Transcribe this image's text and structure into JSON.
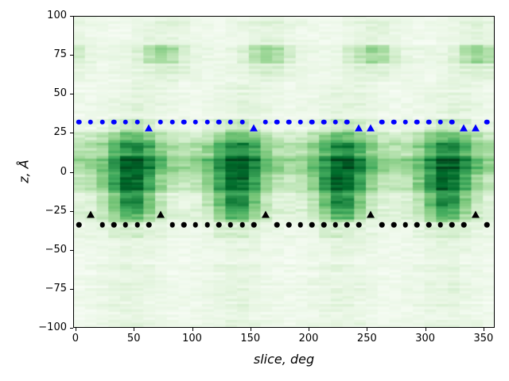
{
  "chart_data": {
    "type": "heatmap",
    "title": "",
    "xlabel": "slice, deg",
    "ylabel": "z, Å",
    "xlim": [
      -2.0,
      359.6
    ],
    "ylim": [
      -100,
      100
    ],
    "grid": false,
    "legend": "none",
    "xticks": [
      0,
      50,
      100,
      150,
      200,
      250,
      300,
      350
    ],
    "xticklabels": [
      "0",
      "50",
      "100",
      "150",
      "200",
      "250",
      "300",
      "350"
    ],
    "yticks": [
      100,
      75,
      50,
      25,
      0,
      -25,
      -50,
      -75,
      -100
    ],
    "yticklabels": [
      "100",
      "75",
      "50",
      "25",
      "0",
      "−25",
      "−50",
      "−75",
      "−100"
    ],
    "colormap": {
      "name": "Greens",
      "stops": [
        [
          0.0,
          "#f7fcf5"
        ],
        [
          0.125,
          "#e5f5e0"
        ],
        [
          0.25,
          "#c7e9c0"
        ],
        [
          0.375,
          "#a1d99b"
        ],
        [
          0.5,
          "#74c476"
        ],
        [
          0.625,
          "#41ab5d"
        ],
        [
          0.75,
          "#238b45"
        ],
        [
          0.875,
          "#006d2c"
        ],
        [
          1.0,
          "#00441b"
        ]
      ]
    },
    "heatmap": {
      "description": "Green density map, 36 angular slices (~10 deg wide) x thin z rows; four-fold periodic dark blobs (period ~90 deg, centers near slice 50/140/230/320) in the central band z ~ -30..+22, strongest near z 0..10; weaker periodic blobs near z ~ 70..82 centered near slice 75/165/255/345; very light elsewhere with horizontal striping.",
      "nx": 36,
      "nz": 118,
      "period_deg": 90,
      "seed": 7,
      "bands": [
        {
          "zlo": 82,
          "zhi": 100,
          "imin": 0.04,
          "imax": 0.13,
          "c0": 75,
          "w": 26,
          "rowj": 0.45,
          "cellj": 0.04
        },
        {
          "zlo": 70,
          "zhi": 82,
          "imin": 0.08,
          "imax": 0.4,
          "c0": 75,
          "w": 19,
          "rowj": 0.3,
          "cellj": 0.05
        },
        {
          "zlo": 58,
          "zhi": 70,
          "imin": 0.06,
          "imax": 0.17,
          "c0": 75,
          "w": 24,
          "rowj": 0.4,
          "cellj": 0.04
        },
        {
          "zlo": 34,
          "zhi": 58,
          "imin": 0.04,
          "imax": 0.12,
          "c0": 55,
          "w": 28,
          "rowj": 0.5,
          "cellj": 0.04
        },
        {
          "zlo": 26,
          "zhi": 34,
          "imin": 0.08,
          "imax": 0.3,
          "c0": 50,
          "w": 22,
          "rowj": 0.3,
          "cellj": 0.05
        },
        {
          "zlo": 18,
          "zhi": 26,
          "imin": 0.2,
          "imax": 0.55,
          "c0": 50,
          "w": 24,
          "rowj": 0.25,
          "cellj": 0.06
        },
        {
          "zlo": 10,
          "zhi": 18,
          "imin": 0.28,
          "imax": 0.78,
          "c0": 50,
          "w": 23,
          "rowj": 0.28,
          "cellj": 0.07
        },
        {
          "zlo": -2,
          "zhi": 10,
          "imin": 0.36,
          "imax": 0.97,
          "c0": 50,
          "w": 23,
          "rowj": 0.2,
          "cellj": 0.06
        },
        {
          "zlo": -14,
          "zhi": -2,
          "imin": 0.22,
          "imax": 0.86,
          "c0": 48,
          "w": 22,
          "rowj": 0.25,
          "cellj": 0.06
        },
        {
          "zlo": -24,
          "zhi": -14,
          "imin": 0.1,
          "imax": 0.7,
          "c0": 48,
          "w": 21,
          "rowj": 0.28,
          "cellj": 0.06
        },
        {
          "zlo": -32,
          "zhi": -24,
          "imin": 0.13,
          "imax": 0.55,
          "c0": 48,
          "w": 20,
          "rowj": 0.3,
          "cellj": 0.06
        },
        {
          "zlo": -42,
          "zhi": -32,
          "imin": 0.06,
          "imax": 0.18,
          "c0": 48,
          "w": 24,
          "rowj": 0.4,
          "cellj": 0.05
        },
        {
          "zlo": -100,
          "zhi": -42,
          "imin": 0.04,
          "imax": 0.11,
          "c0": 48,
          "w": 28,
          "rowj": 0.55,
          "cellj": 0.04
        }
      ]
    },
    "series": [
      {
        "name": "upper-boundary-dots",
        "marker": "circle",
        "color": "#0000ff",
        "z": 32,
        "x": [
          3,
          13,
          23,
          33,
          43,
          53,
          73,
          83,
          93,
          103,
          113,
          123,
          133,
          143,
          163,
          173,
          183,
          193,
          203,
          213,
          223,
          233,
          263,
          273,
          283,
          293,
          303,
          313,
          323,
          353
        ]
      },
      {
        "name": "upper-boundary-triangles",
        "marker": "triangle",
        "color": "#0000ff",
        "z": 28,
        "x": [
          63,
          153,
          243,
          253,
          333,
          343
        ]
      },
      {
        "name": "lower-boundary-triangles",
        "marker": "triangle",
        "color": "#000000",
        "z": -27,
        "x": [
          13,
          73,
          163,
          253,
          343
        ]
      },
      {
        "name": "lower-boundary-dots",
        "marker": "circle",
        "color": "#000000",
        "z": -34,
        "x": [
          3,
          23,
          33,
          43,
          53,
          63,
          83,
          93,
          103,
          113,
          123,
          133,
          143,
          153,
          173,
          183,
          193,
          203,
          213,
          223,
          233,
          243,
          263,
          273,
          283,
          293,
          303,
          313,
          323,
          333,
          353
        ]
      }
    ]
  }
}
